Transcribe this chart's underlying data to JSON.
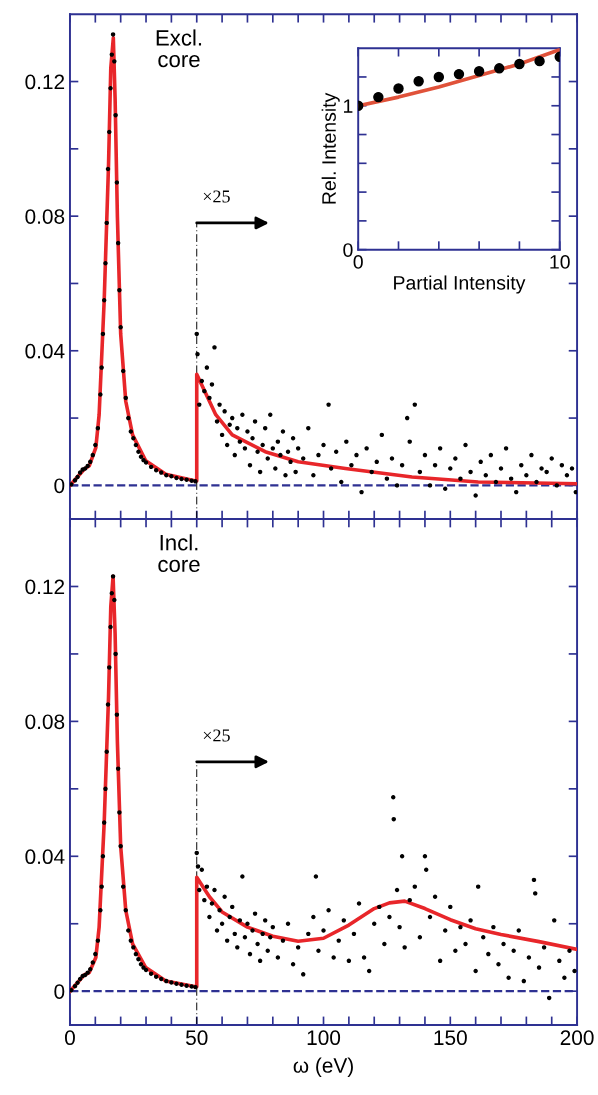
{
  "chart_data": [
    {
      "type": "scatter",
      "tick_labels": "y",
      "xlim": [
        0,
        200
      ],
      "ylim": [
        -0.01,
        0.14
      ],
      "xticks": [
        0,
        {
          "value": 10,
          "label": null
        },
        {
          "value": 20,
          "label": null
        },
        {
          "value": 30,
          "label": null
        },
        {
          "value": 40,
          "label": null
        },
        50,
        {
          "value": 60,
          "label": null
        },
        {
          "value": 70,
          "label": null
        },
        {
          "value": 80,
          "label": null
        },
        {
          "value": 90,
          "label": null
        },
        100,
        {
          "value": 110,
          "label": null
        },
        {
          "value": 120,
          "label": null
        },
        {
          "value": 130,
          "label": null
        },
        {
          "value": 140,
          "label": null
        },
        150,
        {
          "value": 160,
          "label": null
        },
        {
          "value": 170,
          "label": null
        },
        {
          "value": 180,
          "label": null
        },
        {
          "value": 190,
          "label": null
        },
        200
      ],
      "yticks": [
        0,
        {
          "value": 0.02,
          "label": null
        },
        0.04,
        {
          "value": 0.06,
          "label": null
        },
        0.08,
        {
          "value": 0.1,
          "label": null
        },
        0.12
      ],
      "grid": false,
      "legend": false,
      "annotations": [
        "Excl.\ncore",
        {
          "text": "×25",
          "x": 50,
          "y": 0.078
        }
      ],
      "ref_lines": [
        {
          "axis": "y",
          "value": 0,
          "color": "#2e3192",
          "line_style": "dashed"
        },
        {
          "axis": "x",
          "value": 50,
          "color": "#000000",
          "line_style": "dashed"
        }
      ],
      "series": [
        {
          "color": "#000000",
          "marker": "circle",
          "x": [
            0.5,
            2,
            3,
            4,
            5,
            6,
            7,
            8,
            9,
            10,
            11,
            12,
            12.5,
            13,
            13.5,
            14,
            14.5,
            15,
            15.5,
            16,
            16.5,
            17,
            17.5,
            18,
            18.5,
            19,
            19.5,
            20,
            21,
            22,
            23,
            24,
            25,
            26,
            27,
            28,
            29,
            30,
            32,
            34,
            36,
            38,
            40,
            42,
            44,
            46,
            48,
            49.5,
            50,
            50.3,
            51,
            52,
            53,
            54,
            55,
            56,
            57,
            58,
            59,
            60,
            61,
            62,
            63,
            64,
            65,
            66,
            67,
            68,
            69,
            70,
            71,
            72,
            73,
            74,
            75,
            76,
            77,
            78,
            79,
            80,
            81,
            82,
            83,
            84,
            85,
            86,
            87,
            88,
            89,
            90,
            92,
            94,
            96,
            98,
            100,
            102,
            103,
            105,
            107,
            109,
            111,
            113,
            115,
            117,
            119,
            121,
            123,
            125,
            127,
            129,
            131,
            133,
            134,
            136,
            138,
            140,
            142,
            144,
            146,
            148,
            150,
            152,
            154,
            156,
            158,
            160,
            162,
            164,
            166,
            168,
            170,
            172,
            174,
            176,
            178,
            180,
            182,
            184,
            186,
            188,
            190,
            192,
            194,
            196,
            198,
            199.5
          ],
          "values": [
            0.0003,
            0.0015,
            0.0025,
            0.0038,
            0.0047,
            0.005,
            0.0058,
            0.007,
            0.009,
            0.012,
            0.017,
            0.027,
            0.035,
            0.045,
            0.055,
            0.066,
            0.078,
            0.094,
            0.105,
            0.118,
            0.128,
            0.134,
            0.126,
            0.11,
            0.09,
            0.072,
            0.058,
            0.047,
            0.034,
            0.026,
            0.02,
            0.016,
            0.014,
            0.012,
            0.01,
            0.0085,
            0.0075,
            0.0068,
            0.0055,
            0.0045,
            0.0038,
            0.003,
            0.0027,
            0.0022,
            0.0019,
            0.0017,
            0.0014,
            0.0012,
            0.045,
            0.039,
            0.024,
            0.031,
            0.028,
            0.035,
            0.026,
            0.03,
            0.041,
            0.019,
            0.024,
            0.015,
            0.022,
            0.012,
            0.018,
            0.02,
            0.009,
            0.017,
            0.013,
            0.021,
            0.011,
            0.016,
            0.006,
            0.014,
            0.019,
            0.01,
            0.004,
            0.012,
            0.017,
            0.008,
            0.021,
            0.011,
            0.005,
            0.013,
            0.009,
            0.016,
            0.003,
            0.01,
            0.007,
            0.014,
            0.004,
            0.011,
            0.008,
            0.017,
            0.003,
            0.009,
            0.012,
            0.024,
            0.005,
            0.01,
            0.001,
            0.013,
            0.006,
            0.009,
            -0.002,
            0.011,
            0.004,
            0.007,
            0.015,
            0.002,
            0.008,
            0.0,
            0.006,
            0.02,
            0.013,
            0.024,
            0.004,
            0.009,
            0.0,
            0.006,
            0.011,
            -0.001,
            0.005,
            0.008,
            0.002,
            0.012,
            0.004,
            -0.003,
            0.007,
            0.003,
            0.009,
            0.001,
            0.005,
            0.011,
            0.002,
            -0.002,
            0.006,
            0.003,
            0.009,
            0.001,
            0.005,
            0.004,
            0.008,
            0.0,
            0.006,
            0.003,
            0.005,
            -0.002
          ]
        },
        {
          "type": "line",
          "color": "#e8262a",
          "marker": "none",
          "line_style": "solid",
          "x": [
            0,
            5.6,
            7.6,
            10.2,
            11.5,
            13.5,
            15.2,
            16.1,
            17.1,
            17.8,
            18.7,
            20,
            22,
            24.7,
            29.9,
            37.8,
            49.6,
            50,
            50,
            57.5,
            64,
            77,
            90,
            108.6,
            134.9,
            161,
            200
          ],
          "values": [
            0,
            0.0048,
            0.0058,
            0.0112,
            0.021,
            0.055,
            0.095,
            0.124,
            0.133,
            0.115,
            0.08,
            0.045,
            0.025,
            0.015,
            0.0073,
            0.0033,
            0.0013,
            0.0013,
            0.033,
            0.021,
            0.015,
            0.01,
            0.007,
            0.005,
            0.0025,
            0.001,
            0.0005
          ]
        }
      ]
    },
    {
      "type": "scatter",
      "xlabel": "Partial Intensity",
      "ylabel": "Rel. Intensity",
      "xlim": [
        0,
        10
      ],
      "ylim": [
        0,
        1.4
      ],
      "xticks": [
        0,
        {
          "value": 2,
          "label": null
        },
        {
          "value": 4,
          "label": null
        },
        {
          "value": 6,
          "label": null
        },
        {
          "value": 8,
          "label": null
        },
        10
      ],
      "yticks": [
        0,
        {
          "value": 0.2,
          "label": null
        },
        {
          "value": 0.4,
          "label": null
        },
        {
          "value": 0.6,
          "label": null
        },
        {
          "value": 0.8,
          "label": null
        },
        1,
        {
          "value": 1.2,
          "label": null
        }
      ],
      "grid": false,
      "legend": false,
      "series": [
        {
          "type": "line",
          "color": "#e0523a",
          "marker": "none",
          "line_style": "solid",
          "x": [
            0,
            2,
            4,
            6,
            8,
            10
          ],
          "values": [
            1.0,
            1.06,
            1.13,
            1.21,
            1.29,
            1.39
          ]
        },
        {
          "color": "#000000",
          "marker": "circle",
          "x": [
            0,
            1,
            2,
            3,
            4,
            5,
            6,
            7,
            8,
            9,
            10
          ],
          "values": [
            1.0,
            1.06,
            1.12,
            1.17,
            1.2,
            1.22,
            1.24,
            1.26,
            1.29,
            1.31,
            1.34
          ]
        }
      ]
    },
    {
      "type": "scatter",
      "xlabel": "ω (eV)",
      "xlim": [
        0,
        200
      ],
      "ylim": [
        -0.01,
        0.14
      ],
      "xticks": [
        0,
        {
          "value": 10,
          "label": null
        },
        {
          "value": 20,
          "label": null
        },
        {
          "value": 30,
          "label": null
        },
        {
          "value": 40,
          "label": null
        },
        50,
        {
          "value": 60,
          "label": null
        },
        {
          "value": 70,
          "label": null
        },
        {
          "value": 80,
          "label": null
        },
        {
          "value": 90,
          "label": null
        },
        100,
        {
          "value": 110,
          "label": null
        },
        {
          "value": 120,
          "label": null
        },
        {
          "value": 130,
          "label": null
        },
        {
          "value": 140,
          "label": null
        },
        150,
        {
          "value": 160,
          "label": null
        },
        {
          "value": 170,
          "label": null
        },
        {
          "value": 180,
          "label": null
        },
        {
          "value": 190,
          "label": null
        },
        200
      ],
      "yticks": [
        0,
        {
          "value": 0.02,
          "label": null
        },
        0.04,
        {
          "value": 0.06,
          "label": null
        },
        0.08,
        {
          "value": 0.1,
          "label": null
        },
        0.12
      ],
      "grid": false,
      "legend": false,
      "annotations": [
        "Incl.\ncore",
        {
          "text": "×25",
          "x": 50,
          "y": 0.068
        }
      ],
      "ref_lines": [
        {
          "axis": "y",
          "value": 0,
          "color": "#2e3192",
          "line_style": "dashed"
        },
        {
          "axis": "x",
          "value": 50,
          "color": "#000000",
          "line_style": "dashed"
        }
      ],
      "series": [
        {
          "color": "#000000",
          "marker": "circle",
          "x": [
            0.5,
            2,
            3,
            4,
            5,
            6,
            7,
            8,
            9,
            10,
            11,
            12,
            12.5,
            13,
            13.5,
            14,
            14.5,
            15,
            15.5,
            16,
            16.5,
            17,
            17.5,
            18,
            18.5,
            19,
            19.5,
            20,
            21,
            22,
            23,
            24,
            25,
            26,
            27,
            28,
            29,
            30,
            32,
            34,
            36,
            38,
            40,
            42,
            44,
            46,
            48,
            49.5,
            50,
            50.5,
            51,
            52,
            53,
            54,
            55,
            56,
            57,
            58,
            59,
            60,
            61,
            62,
            63,
            64,
            65,
            66,
            67,
            68,
            69,
            70,
            71,
            72,
            73,
            74,
            75,
            76,
            77,
            78,
            79,
            80,
            82,
            84,
            86,
            88,
            90,
            92,
            94,
            96,
            97,
            98,
            100,
            102,
            104,
            106,
            108,
            110,
            112,
            114,
            116,
            118,
            120,
            122,
            124,
            126,
            127.5,
            127.7,
            129,
            130,
            131,
            132,
            134,
            136,
            138,
            140,
            140.5,
            142,
            144,
            146,
            148,
            150,
            152,
            154,
            156,
            158,
            160,
            161,
            163,
            165,
            167,
            169,
            171,
            173,
            175,
            177,
            179,
            181,
            183,
            183.5,
            185,
            187,
            189,
            191,
            193,
            195,
            197,
            199
          ],
          "values": [
            0.0003,
            0.0015,
            0.0025,
            0.0036,
            0.0045,
            0.0048,
            0.0055,
            0.0065,
            0.0085,
            0.011,
            0.015,
            0.024,
            0.031,
            0.04,
            0.05,
            0.06,
            0.071,
            0.085,
            0.096,
            0.108,
            0.118,
            0.123,
            0.116,
            0.1,
            0.082,
            0.066,
            0.053,
            0.043,
            0.031,
            0.024,
            0.018,
            0.015,
            0.013,
            0.011,
            0.0095,
            0.008,
            0.007,
            0.0063,
            0.0052,
            0.0043,
            0.0036,
            0.003,
            0.0026,
            0.0022,
            0.0019,
            0.0016,
            0.0014,
            0.0012,
            0.041,
            0.037,
            0.03,
            0.036,
            0.027,
            0.031,
            0.022,
            0.026,
            0.03,
            0.018,
            0.024,
            0.02,
            0.028,
            0.015,
            0.022,
            0.025,
            0.017,
            0.013,
            0.021,
            0.034,
            0.016,
            0.02,
            0.011,
            0.018,
            0.023,
            0.014,
            0.009,
            0.017,
            0.021,
            0.012,
            0.016,
            0.019,
            0.01,
            0.015,
            0.02,
            0.008,
            0.013,
            0.005,
            0.017,
            0.022,
            0.034,
            0.012,
            0.018,
            0.024,
            0.01,
            0.015,
            0.021,
            0.009,
            0.017,
            0.026,
            0.01,
            0.006,
            0.02,
            0.025,
            0.014,
            0.022,
            0.0575,
            0.051,
            0.03,
            0.019,
            0.04,
            0.013,
            0.027,
            0.031,
            0.016,
            0.04,
            0.036,
            0.022,
            0.028,
            0.009,
            0.018,
            0.025,
            0.012,
            0.019,
            0.014,
            0.021,
            0.006,
            0.031,
            0.016,
            0.011,
            0.019,
            0.008,
            0.014,
            0.004,
            0.012,
            0.018,
            0.003,
            0.01,
            0.033,
            0.029,
            0.007,
            0.013,
            -0.002,
            0.021,
            0.009,
            0.004,
            0.012,
            0.006
          ]
        },
        {
          "type": "line",
          "color": "#e8262a",
          "marker": "none",
          "line_style": "solid",
          "x": [
            0,
            5.6,
            7.6,
            10.2,
            11.5,
            13.5,
            15.2,
            16.1,
            17,
            17.8,
            18.7,
            20,
            22,
            24.7,
            29.9,
            37.8,
            49.6,
            50,
            50,
            55,
            60,
            70,
            80,
            90,
            100,
            110,
            120,
            126,
            132,
            140,
            150,
            160,
            170,
            185,
            200
          ],
          "values": [
            0,
            0.0048,
            0.0055,
            0.01,
            0.019,
            0.05,
            0.087,
            0.114,
            0.123,
            0.106,
            0.074,
            0.043,
            0.024,
            0.014,
            0.007,
            0.003,
            0.0013,
            0.0013,
            0.0338,
            0.028,
            0.0235,
            0.019,
            0.0163,
            0.0148,
            0.0157,
            0.0196,
            0.0245,
            0.0262,
            0.0267,
            0.0245,
            0.0212,
            0.0185,
            0.0168,
            0.0147,
            0.0124
          ]
        }
      ]
    }
  ]
}
